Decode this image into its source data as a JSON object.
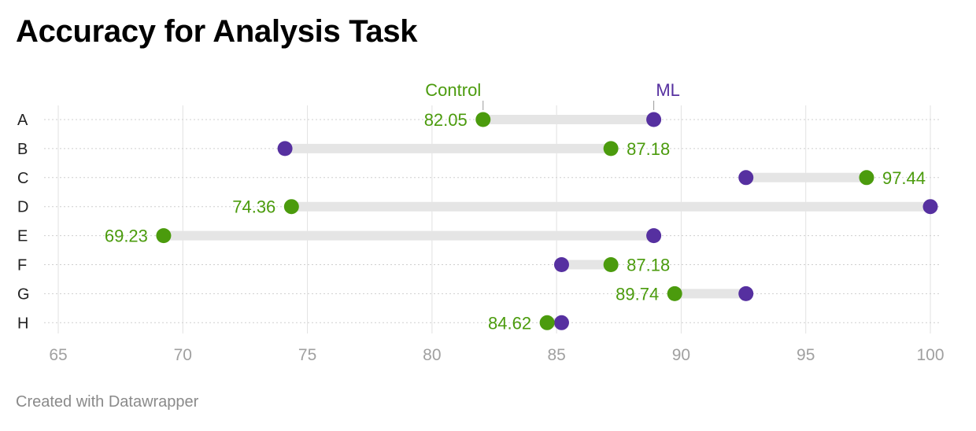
{
  "title": "Accuracy for Analysis Task",
  "footer": "Created with Datawrapper",
  "colors": {
    "control": "#4b9b0d",
    "ml": "#5630a0",
    "range": "#e5e5e5",
    "grid": "#e2e2e2",
    "tick": "#a0a0a0"
  },
  "chart_data": {
    "type": "dot-range",
    "title": "Accuracy for Analysis Task",
    "categories": [
      "A",
      "B",
      "C",
      "D",
      "E",
      "F",
      "G",
      "H"
    ],
    "series": [
      {
        "name": "Control",
        "values": [
          82.05,
          87.18,
          97.44,
          74.36,
          69.23,
          87.18,
          89.74,
          84.62
        ]
      },
      {
        "name": "ML",
        "values": [
          88.9,
          74.1,
          92.6,
          100,
          88.9,
          85.2,
          92.6,
          85.2
        ]
      }
    ],
    "value_labels": [
      "82.05",
      "87.18",
      "97.44",
      "74.36",
      "69.23",
      "87.18",
      "89.74",
      "84.62"
    ],
    "xlim": [
      65,
      100
    ],
    "xticks": [
      "65",
      "70",
      "75",
      "80",
      "85",
      "90",
      "95",
      "100"
    ],
    "grid": true,
    "legend": "inline-top"
  }
}
